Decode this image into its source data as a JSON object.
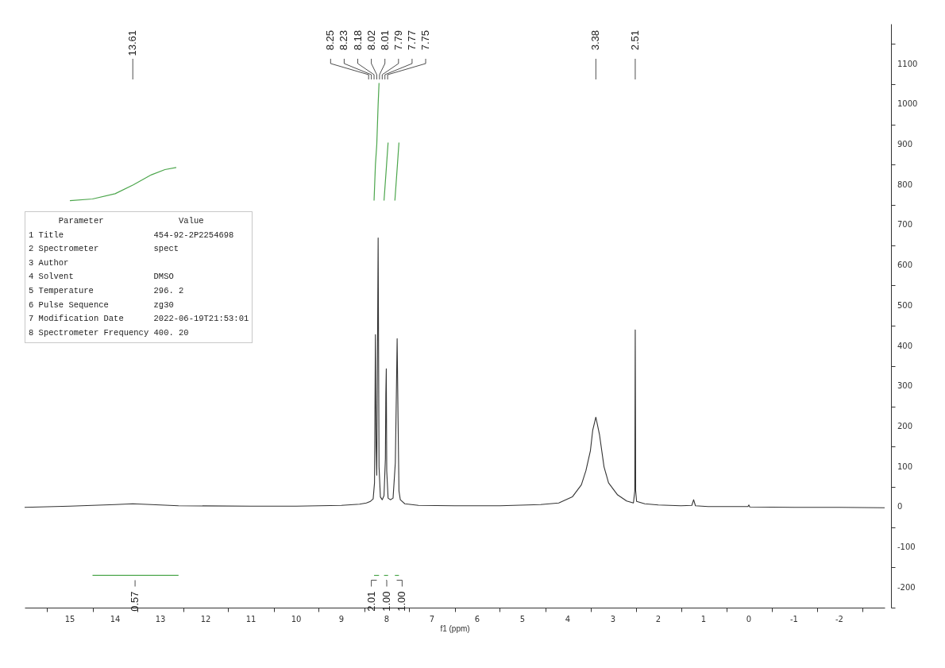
{
  "chart_data": {
    "type": "line",
    "xlabel": "f1 (ppm)",
    "xlim": [
      16,
      -3
    ],
    "ylim": [
      -250,
      1200
    ],
    "grid": false,
    "marker": "none",
    "line_style": "solid",
    "xticks": [
      {
        "value": 15.5,
        "label": null
      },
      15,
      {
        "value": 14.5,
        "label": null
      },
      14,
      {
        "value": 13.5,
        "label": null
      },
      13,
      {
        "value": 12.5,
        "label": null
      },
      12,
      {
        "value": 11.5,
        "label": null
      },
      11,
      {
        "value": 10.5,
        "label": null
      },
      10,
      {
        "value": 9.5,
        "label": null
      },
      9,
      {
        "value": 8.5,
        "label": null
      },
      8,
      {
        "value": 7.5,
        "label": null
      },
      7,
      {
        "value": 6.5,
        "label": null
      },
      6,
      {
        "value": 5.5,
        "label": null
      },
      5,
      {
        "value": 4.5,
        "label": null
      },
      4,
      {
        "value": 3.5,
        "label": null
      },
      3,
      {
        "value": 2.5,
        "label": null
      },
      2,
      {
        "value": 1.5,
        "label": null
      },
      1,
      {
        "value": 0.5,
        "label": null
      },
      0,
      {
        "value": -0.5,
        "label": null
      },
      -1,
      {
        "value": -1.5,
        "label": null
      },
      -2,
      {
        "value": -2.5,
        "label": null
      }
    ],
    "yticks": [
      {
        "value": -250,
        "label": null
      },
      -200,
      {
        "value": -150,
        "label": null
      },
      -100,
      {
        "value": -50,
        "label": null
      },
      0,
      {
        "value": 50,
        "label": null
      },
      100,
      {
        "value": 150,
        "label": null
      },
      200,
      {
        "value": 250,
        "label": null
      },
      300,
      {
        "value": 350,
        "label": null
      },
      400,
      {
        "value": 450,
        "label": null
      },
      500,
      {
        "value": 550,
        "label": null
      },
      600,
      {
        "value": 650,
        "label": null
      },
      700,
      {
        "value": 750,
        "label": null
      },
      800,
      {
        "value": 850,
        "label": null
      },
      900,
      {
        "value": 950,
        "label": null
      },
      1000,
      {
        "value": 1050,
        "label": null
      },
      1100,
      {
        "value": 1150,
        "label": null
      }
    ],
    "series": [
      {
        "type": "line",
        "color": "#333333",
        "x": [
          16,
          15,
          14.5,
          14,
          13.61,
          13.2,
          12.6,
          11,
          10,
          9,
          8.6,
          8.45,
          8.36,
          8.3,
          8.27,
          8.25,
          8.235,
          8.22,
          8.19,
          8.17,
          8.14,
          8.1,
          8.06,
          8.03,
          8.02,
          8.01,
          8.0,
          7.97,
          7.92,
          7.86,
          7.81,
          7.79,
          7.77,
          7.75,
          7.73,
          7.7,
          7.6,
          7.3,
          6.5,
          5.5,
          4.6,
          4.2,
          3.9,
          3.7,
          3.6,
          3.5,
          3.45,
          3.38,
          3.3,
          3.2,
          3.1,
          2.9,
          2.7,
          2.55,
          2.52,
          2.51,
          2.5,
          2.48,
          2.3,
          2.0,
          1.5,
          1.26,
          1.22,
          1.18,
          0.9,
          0.02,
          0.0,
          -0.02,
          -1,
          -2,
          -3
        ],
        "values": [
          -1,
          2,
          4,
          6,
          8,
          6,
          3,
          2,
          2,
          4,
          7,
          10,
          14,
          20,
          60,
          428,
          150,
          79,
          668,
          100,
          25,
          18,
          28,
          120,
          280,
          343,
          90,
          22,
          18,
          22,
          110,
          260,
          418,
          220,
          40,
          18,
          8,
          4,
          3,
          3,
          6,
          10,
          25,
          55,
          90,
          140,
          190,
          223,
          180,
          100,
          60,
          30,
          15,
          10,
          40,
          440,
          40,
          14,
          8,
          5,
          3,
          4,
          18,
          3,
          1,
          1,
          5,
          0,
          -1,
          -1,
          -2
        ]
      },
      {
        "type": "line",
        "color": "#4ca64c",
        "x": [
          15,
          14.5,
          14,
          13.6,
          13.2,
          12.9,
          12.65
        ],
        "values": [
          761,
          765,
          778,
          800,
          825,
          838,
          843
        ]
      },
      {
        "type": "line",
        "color": "#4ca64c",
        "x": [
          8.28,
          8.25,
          8.22,
          8.19,
          8.17
        ],
        "values": [
          761,
          850,
          900,
          1000,
          1053
        ]
      },
      {
        "type": "line",
        "color": "#4ca64c",
        "x": [
          8.06,
          8.01,
          7.97
        ],
        "values": [
          761,
          840,
          905
        ]
      },
      {
        "type": "line",
        "color": "#4ca64c",
        "x": [
          7.82,
          7.77,
          7.73
        ],
        "values": [
          761,
          840,
          905
        ]
      },
      {
        "type": "line",
        "color": "#4ca64c",
        "x": [
          14.5,
          12.6
        ],
        "values": [
          -170,
          -170
        ]
      },
      {
        "type": "line",
        "color": "#4ca64c",
        "x": [
          8.28,
          8.17
        ],
        "values": [
          -170,
          -170
        ]
      },
      {
        "type": "line",
        "color": "#4ca64c",
        "x": [
          8.06,
          7.97
        ],
        "values": [
          -170,
          -170
        ]
      },
      {
        "type": "line",
        "color": "#4ca64c",
        "x": [
          7.82,
          7.73
        ],
        "values": [
          -170,
          -170
        ]
      }
    ],
    "annotations": [
      {
        "text": "13.61",
        "x": 13.61
      },
      "8.25",
      "8.23",
      "8.18",
      "8.02",
      "8.01",
      "7.79",
      "7.77",
      "7.75",
      {
        "text": "3.38",
        "x": 3.38
      },
      {
        "text": "2.51",
        "x": 2.51
      },
      {
        "text": "0.57",
        "x": 13.56,
        "y": -170
      },
      {
        "text": "2.01",
        "x": 8.22,
        "y": -170
      },
      {
        "text": "1.00",
        "x": 8.01,
        "y": -170
      },
      {
        "text": "1.00",
        "x": 7.78,
        "y": -170
      },
      "      Parameter               Value",
      "1 Title                  454-92-2P2254698",
      "2 Spectrometer           spect",
      "3 Author",
      "4 Solvent                DMSO",
      "5 Temperature            296. 2",
      "6 Pulse Sequence         zg30",
      "7 Modification Date      2022-06-19T21:53:01",
      "8 Spectrometer Frequency 400. 20"
    ]
  }
}
